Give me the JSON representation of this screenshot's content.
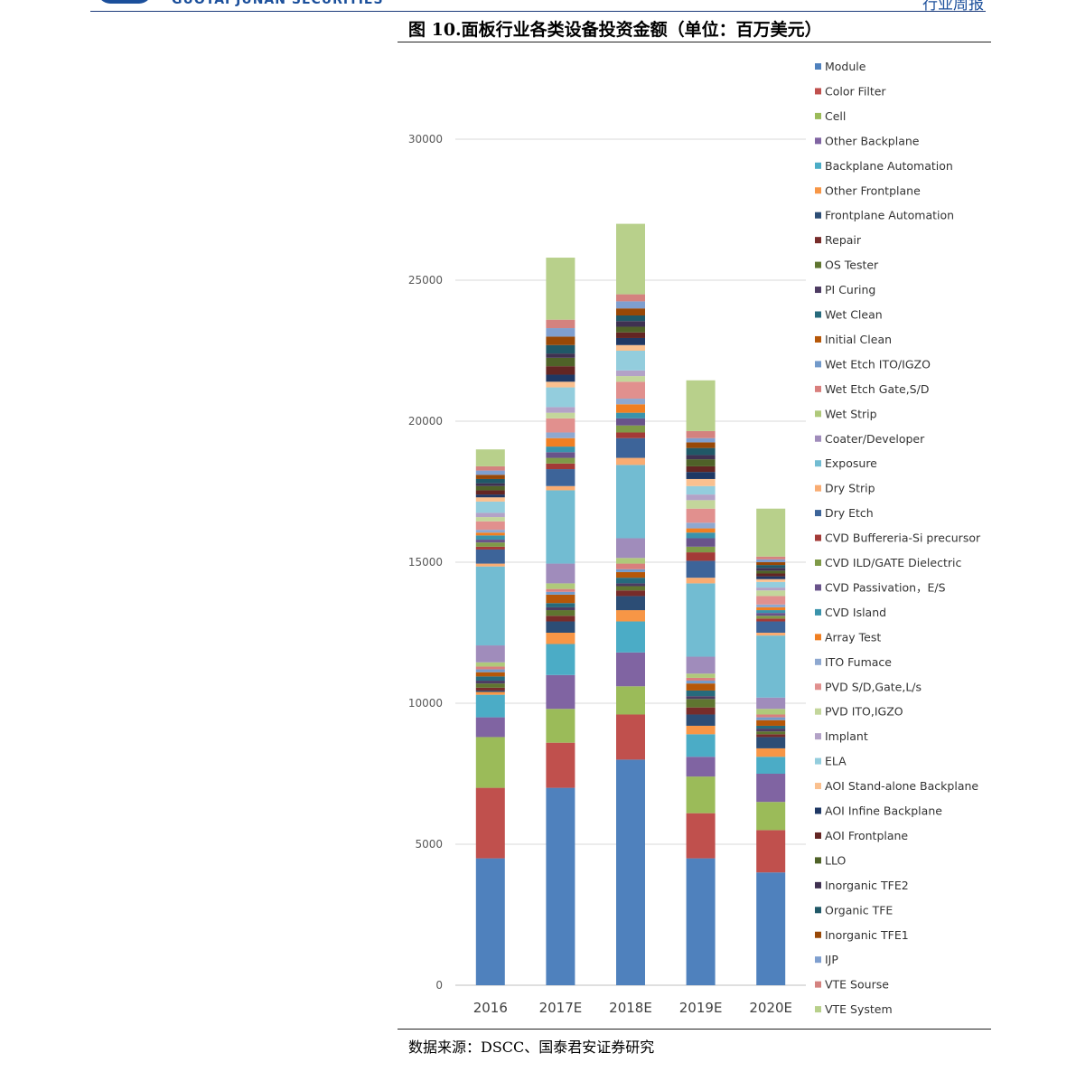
{
  "header": {
    "company": "GUOTAI JUNAN SECURITIES",
    "report_type": "行业周报"
  },
  "figure": {
    "title": "图 10.面板行业各类设备投资金额（单位：百万美元）",
    "source": "数据来源：DSCC、国泰君安证券研究"
  },
  "chart_data": {
    "type": "bar",
    "stacked": true,
    "title": "图 10.面板行业各类设备投资金额（单位：百万美元）",
    "xlabel": "",
    "ylabel": "",
    "ylim": [
      0,
      30000
    ],
    "yticks": [
      0,
      5000,
      10000,
      15000,
      20000,
      25000,
      30000
    ],
    "grid": true,
    "legend_position": "right",
    "categories": [
      "2016",
      "2017E",
      "2018E",
      "2019E",
      "2020E"
    ],
    "series": [
      {
        "name": "Module",
        "color": "#4f81bd",
        "values": [
          4500,
          7000,
          8000,
          4500,
          4000
        ]
      },
      {
        "name": "Color Filter",
        "color": "#c0504d",
        "values": [
          2500,
          1600,
          1600,
          1600,
          1500
        ]
      },
      {
        "name": "Cell",
        "color": "#9bbb59",
        "values": [
          1800,
          1200,
          1000,
          1300,
          1000
        ]
      },
      {
        "name": "Other Backplane",
        "color": "#8064a2",
        "values": [
          700,
          1200,
          1200,
          700,
          1000
        ]
      },
      {
        "name": "Backplane Automation",
        "color": "#4bacc6",
        "values": [
          800,
          1100,
          1100,
          800,
          600
        ]
      },
      {
        "name": "Other Frontplane",
        "color": "#f79646",
        "values": [
          100,
          400,
          400,
          300,
          300
        ]
      },
      {
        "name": "Frontplane Automation",
        "color": "#2c4d75",
        "values": [
          50,
          400,
          500,
          400,
          400
        ]
      },
      {
        "name": "Repair",
        "color": "#772c2a",
        "values": [
          100,
          200,
          200,
          250,
          100
        ]
      },
      {
        "name": "OS Tester",
        "color": "#5f7530",
        "values": [
          150,
          200,
          150,
          300,
          100
        ]
      },
      {
        "name": "PI Curing",
        "color": "#4d3b62",
        "values": [
          100,
          100,
          100,
          100,
          100
        ]
      },
      {
        "name": "Wet Clean",
        "color": "#276a7c",
        "values": [
          150,
          150,
          200,
          200,
          100
        ]
      },
      {
        "name": "Initial Clean",
        "color": "#b65708",
        "values": [
          150,
          300,
          200,
          250,
          200
        ]
      },
      {
        "name": "Wet Etch ITO/IGZO",
        "color": "#729aca",
        "values": [
          100,
          100,
          100,
          100,
          100
        ]
      },
      {
        "name": "Wet Etch Gate,S/D",
        "color": "#d97f7d",
        "values": [
          100,
          100,
          200,
          100,
          100
        ]
      },
      {
        "name": "Wet Strip",
        "color": "#afc97a",
        "values": [
          150,
          200,
          200,
          150,
          200
        ]
      },
      {
        "name": "Coater/Developer",
        "color": "#a08cbb",
        "values": [
          600,
          700,
          700,
          600,
          400
        ]
      },
      {
        "name": "Exposure",
        "color": "#72bcd2",
        "values": [
          2800,
          2600,
          2600,
          2600,
          2200
        ]
      },
      {
        "name": "Dry Strip",
        "color": "#f9ac72",
        "values": [
          100,
          150,
          250,
          200,
          100
        ]
      },
      {
        "name": "Dry Etch",
        "color": "#3d6499",
        "values": [
          500,
          600,
          700,
          600,
          400
        ]
      },
      {
        "name": "CVD Buffereria-Si precursor",
        "color": "#a33a37",
        "values": [
          100,
          200,
          200,
          300,
          100
        ]
      },
      {
        "name": "CVD ILD/GATE Dielectric",
        "color": "#7f9a48",
        "values": [
          150,
          200,
          250,
          200,
          100
        ]
      },
      {
        "name": "CVD Passivation，E/S",
        "color": "#69538a",
        "values": [
          100,
          200,
          250,
          300,
          100
        ]
      },
      {
        "name": "CVD Island",
        "color": "#3a93ab",
        "values": [
          150,
          200,
          200,
          200,
          100
        ]
      },
      {
        "name": "Array Test",
        "color": "#f07f22",
        "values": [
          100,
          300,
          300,
          150,
          100
        ]
      },
      {
        "name": "ITO Fumace",
        "color": "#8ea8d0",
        "values": [
          100,
          200,
          200,
          200,
          100
        ]
      },
      {
        "name": "PVD S/D,Gate,L/s",
        "color": "#e1908e",
        "values": [
          300,
          500,
          600,
          500,
          300
        ]
      },
      {
        "name": "PVD ITO,IGZO",
        "color": "#c3d69b",
        "values": [
          150,
          200,
          200,
          300,
          200
        ]
      },
      {
        "name": "Implant",
        "color": "#b3a2c7",
        "values": [
          150,
          200,
          200,
          200,
          100
        ]
      },
      {
        "name": "ELA",
        "color": "#93cddd",
        "values": [
          400,
          700,
          700,
          300,
          200
        ]
      },
      {
        "name": "AOI Stand-alone Backplane",
        "color": "#fac08f",
        "values": [
          150,
          200,
          200,
          250,
          100
        ]
      },
      {
        "name": "AOI Infine Backplane",
        "color": "#1f3864",
        "values": [
          100,
          250,
          250,
          250,
          100
        ]
      },
      {
        "name": "AOI Frontplane",
        "color": "#632523",
        "values": [
          150,
          300,
          200,
          200,
          100
        ]
      },
      {
        "name": "LLO",
        "color": "#4f6228",
        "values": [
          150,
          300,
          200,
          250,
          100
        ]
      },
      {
        "name": "Inorganic TFE2",
        "color": "#3f3151",
        "values": [
          100,
          150,
          200,
          150,
          100
        ]
      },
      {
        "name": "Organic TFE",
        "color": "#205867",
        "values": [
          150,
          300,
          200,
          250,
          100
        ]
      },
      {
        "name": "Inorganic TFE1",
        "color": "#984807",
        "values": [
          150,
          300,
          250,
          200,
          100
        ]
      },
      {
        "name": "IJP",
        "color": "#7f9fcf",
        "values": [
          150,
          300,
          250,
          150,
          100
        ]
      },
      {
        "name": "VTE Sourse",
        "color": "#d4827f",
        "values": [
          150,
          300,
          250,
          250,
          100
        ]
      },
      {
        "name": "VTE System",
        "color": "#b8d08b",
        "values": [
          600,
          2200,
          2500,
          1800,
          1700
        ]
      }
    ]
  }
}
